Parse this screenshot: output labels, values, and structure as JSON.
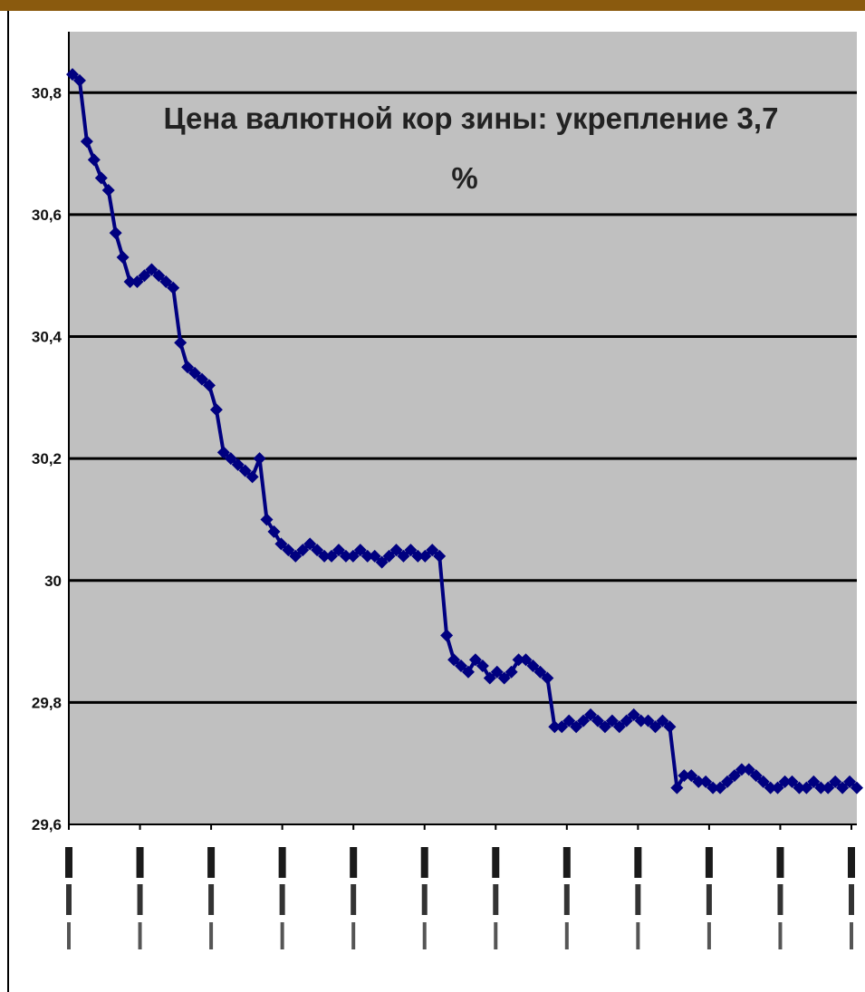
{
  "colors": {
    "top_bar": "#8a5a0e",
    "plot_background": "#c0c0c0",
    "series": "#000080",
    "gridline": "#000000"
  },
  "chart_data": {
    "type": "line",
    "title_lines": [
      "Цена валютной кор зины: укрепление 3,7",
      "%"
    ],
    "xlabel": "",
    "ylabel": "",
    "ylim": [
      29.6,
      30.9
    ],
    "yticks": [
      29.6,
      29.8,
      30,
      30.2,
      30.4,
      30.6,
      30.8
    ],
    "ytick_labels": [
      "29,6",
      "29,8",
      "30",
      "30,2",
      "30,4",
      "30,6",
      "30,8"
    ],
    "xtick_count": 12,
    "xtick_labels": [
      "",
      "",
      "",
      "",
      "",
      "",
      "",
      "",
      "",
      "",
      "",
      ""
    ],
    "grid": "horizontal",
    "legend": "none",
    "series": [
      {
        "name": "",
        "values": [
          30.83,
          30.82,
          30.72,
          30.69,
          30.66,
          30.64,
          30.57,
          30.53,
          30.49,
          30.49,
          30.5,
          30.51,
          30.5,
          30.49,
          30.48,
          30.39,
          30.35,
          30.34,
          30.33,
          30.32,
          30.28,
          30.21,
          30.2,
          30.19,
          30.18,
          30.17,
          30.2,
          30.1,
          30.08,
          30.06,
          30.05,
          30.04,
          30.05,
          30.06,
          30.05,
          30.04,
          30.04,
          30.05,
          30.04,
          30.04,
          30.05,
          30.04,
          30.04,
          30.03,
          30.04,
          30.05,
          30.04,
          30.05,
          30.04,
          30.04,
          30.05,
          30.04,
          29.91,
          29.87,
          29.86,
          29.85,
          29.87,
          29.86,
          29.84,
          29.85,
          29.84,
          29.85,
          29.87,
          29.87,
          29.86,
          29.85,
          29.84,
          29.76,
          29.76,
          29.77,
          29.76,
          29.77,
          29.78,
          29.77,
          29.76,
          29.77,
          29.76,
          29.77,
          29.78,
          29.77,
          29.77,
          29.76,
          29.77,
          29.76,
          29.66,
          29.68,
          29.68,
          29.67,
          29.67,
          29.66,
          29.66,
          29.67,
          29.68,
          29.69,
          29.69,
          29.68,
          29.67,
          29.66,
          29.66,
          29.67,
          29.67,
          29.66,
          29.66,
          29.67,
          29.66,
          29.66,
          29.67,
          29.66,
          29.67,
          29.66
        ]
      }
    ]
  }
}
